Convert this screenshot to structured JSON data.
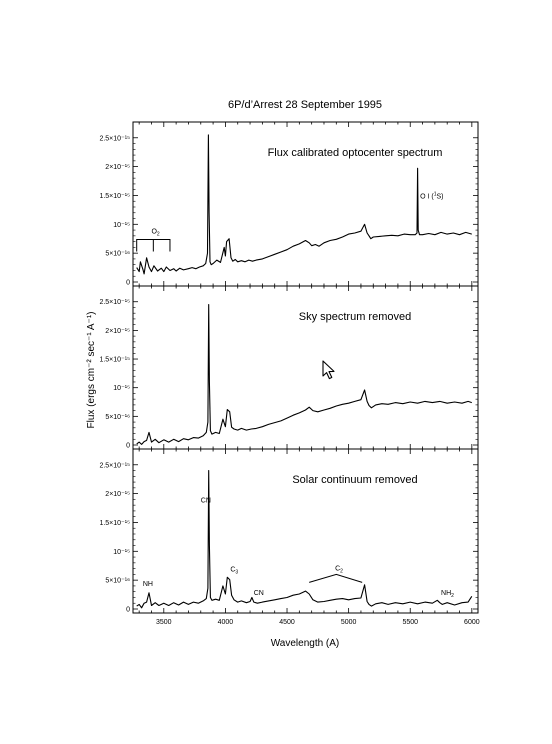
{
  "figure": {
    "title": "6P/d’Arrest 28 September 1995",
    "xlabel": "Wavelength (A)",
    "ylabel": "Flux (ergs cm⁻² sec⁻¹ A⁻¹)"
  },
  "chart_data": [
    {
      "type": "line",
      "title": "Flux calibrated optocenter spectrum",
      "xlim": [
        3250,
        6050
      ],
      "ylim": [
        0,
        2.6e-15
      ],
      "xticks": [
        3500,
        4000,
        4500,
        5000,
        5500,
        6000
      ],
      "xtick_labels": [
        "3500",
        "4000",
        "4500",
        "5000",
        "5500",
        "6000"
      ],
      "yticks": [
        0,
        5e-16,
        1e-15,
        1.5e-15,
        2e-15,
        2.5e-15
      ],
      "ytick_labels": [
        "0",
        "5×10⁻¹⁶",
        "10⁻¹⁵",
        "1.5×10⁻¹⁵",
        "2×10⁻¹⁵",
        "2.5×10⁻¹⁵"
      ],
      "series": [
        {
          "x": [
            3280,
            3300,
            3310,
            3330,
            3340,
            3360,
            3380,
            3400,
            3420,
            3450,
            3480,
            3500,
            3520,
            3550,
            3580,
            3600,
            3630,
            3660,
            3700,
            3730,
            3760,
            3790,
            3820,
            3840,
            3855,
            3862,
            3868,
            3875,
            3885,
            3900,
            3930,
            3960,
            3990,
            4000,
            4010,
            4030,
            4045,
            4060,
            4080,
            4100,
            4130,
            4160,
            4190,
            4220,
            4250,
            4300,
            4350,
            4400,
            4450,
            4500,
            4550,
            4600,
            4650,
            4680,
            4700,
            4730,
            4760,
            4800,
            4850,
            4900,
            4950,
            5000,
            5050,
            5100,
            5130,
            5150,
            5165,
            5180,
            5200,
            5250,
            5300,
            5350,
            5400,
            5450,
            5500,
            5540,
            5555,
            5560,
            5565,
            5575,
            5600,
            5650,
            5700,
            5750,
            5800,
            5850,
            5900,
            5950,
            6000
          ],
          "y": [
            2.5e-16,
            1.8e-16,
            3.5e-16,
            2.2e-16,
            1.4e-16,
            4.2e-16,
            2.6e-16,
            1.8e-16,
            2.8e-16,
            1.9e-16,
            2.4e-16,
            1.8e-16,
            2.6e-16,
            2e-16,
            2.3e-16,
            1.9e-16,
            2.4e-16,
            2.1e-16,
            2.3e-16,
            2.5e-16,
            2.3e-16,
            2.6e-16,
            2.8e-16,
            3.2e-16,
            5e-16,
            2.55e-15,
            1.2e-15,
            3.5e-16,
            3e-16,
            3.2e-16,
            3.8e-16,
            3.4e-16,
            6e-16,
            4.5e-16,
            7e-16,
            7.5e-16,
            4.2e-16,
            3.6e-16,
            3.9e-16,
            3.5e-16,
            3.7e-16,
            3.5e-16,
            3.8e-16,
            3.6e-16,
            3.8e-16,
            4e-16,
            4.4e-16,
            4.8e-16,
            5.2e-16,
            5.6e-16,
            6.2e-16,
            6.6e-16,
            7.2e-16,
            6.8e-16,
            6.3e-16,
            6.5e-16,
            6.2e-16,
            6.8e-16,
            7.2e-16,
            7.4e-16,
            7.8e-16,
            8.3e-16,
            8.5e-16,
            8.8e-16,
            1e-15,
            8.5e-16,
            8e-16,
            7.5e-16,
            7.8e-16,
            7.9e-16,
            8e-16,
            8.1e-16,
            8e-16,
            8.3e-16,
            8.2e-16,
            8.2e-16,
            8.5e-16,
            1.97e-15,
            9e-16,
            8.2e-16,
            8.2e-16,
            8.4e-16,
            8.2e-16,
            8.6e-16,
            8.3e-16,
            8.5e-16,
            8.2e-16,
            8.6e-16,
            8.3e-16
          ]
        }
      ],
      "annotations": [
        {
          "text": "O",
          "subscript": "2",
          "x": 3400,
          "y": 8.4e-16,
          "bracket": [
            3280,
            3550
          ]
        },
        {
          "text": "O I (",
          "suffix": "S)",
          "superscript": "1",
          "x": 5580,
          "y": 1.45e-15
        }
      ]
    },
    {
      "type": "line",
      "title": "Sky spectrum removed",
      "xlim": [
        3250,
        6050
      ],
      "ylim": [
        0,
        2.6e-15
      ],
      "xticks": [
        3500,
        4000,
        4500,
        5000,
        5500,
        6000
      ],
      "yticks": [
        0,
        5e-16,
        1e-15,
        1.5e-15,
        2e-15,
        2.5e-15
      ],
      "ytick_labels": [
        "0",
        "5×10⁻¹⁶",
        "10⁻¹⁵",
        "1.5×10⁻¹⁵",
        "2×10⁻¹⁵",
        "2.5×10⁻¹⁵"
      ],
      "series": [
        {
          "x": [
            3280,
            3300,
            3320,
            3340,
            3360,
            3380,
            3400,
            3430,
            3460,
            3500,
            3540,
            3580,
            3620,
            3660,
            3700,
            3740,
            3780,
            3820,
            3845,
            3858,
            3864,
            3870,
            3878,
            3890,
            3920,
            3950,
            3980,
            4000,
            4015,
            4035,
            4050,
            4070,
            4100,
            4130,
            4170,
            4210,
            4250,
            4300,
            4350,
            4400,
            4450,
            4500,
            4550,
            4600,
            4650,
            4680,
            4710,
            4750,
            4800,
            4850,
            4900,
            4950,
            5000,
            5050,
            5100,
            5130,
            5150,
            5165,
            5185,
            5220,
            5270,
            5320,
            5380,
            5440,
            5500,
            5560,
            5620,
            5680,
            5740,
            5800,
            5860,
            5920,
            5970,
            6000
          ],
          "y": [
            2e-17,
            5e-17,
            1e-17,
            6e-17,
            8e-17,
            2.2e-16,
            5e-17,
            1e-16,
            4e-17,
            9e-17,
            5e-17,
            1e-16,
            6e-17,
            1.1e-16,
            9e-17,
            1.3e-16,
            1.2e-16,
            1.6e-16,
            2.2e-16,
            4e-16,
            2.45e-15,
            1.1e-15,
            2.5e-16,
            1.9e-16,
            2.2e-16,
            2e-16,
            4.5e-16,
            3.2e-16,
            6.2e-16,
            5.8e-16,
            3.1e-16,
            2.8e-16,
            2.6e-16,
            2.9e-16,
            2.6e-16,
            2.8e-16,
            2.9e-16,
            3.2e-16,
            3.6e-16,
            3.9e-16,
            4.2e-16,
            4.7e-16,
            5.2e-16,
            5.6e-16,
            6.1e-16,
            6.6e-16,
            6e-16,
            5.8e-16,
            6.1e-16,
            6.4e-16,
            6.8e-16,
            7.1e-16,
            7.3e-16,
            7.6e-16,
            7.9e-16,
            9.6e-16,
            7.6e-16,
            6.9e-16,
            6.5e-16,
            7e-16,
            7.2e-16,
            7.1e-16,
            7.4e-16,
            7.2e-16,
            7.5e-16,
            7.3e-16,
            7.6e-16,
            7.4e-16,
            7.6e-16,
            7.3e-16,
            7.5e-16,
            7.3e-16,
            7.6e-16,
            7.4e-16
          ]
        }
      ]
    },
    {
      "type": "line",
      "title": "Solar continuum removed",
      "xlim": [
        3250,
        6050
      ],
      "ylim": [
        0,
        2.6e-15
      ],
      "xticks": [
        3500,
        4000,
        4500,
        5000,
        5500,
        6000
      ],
      "xtick_labels": [
        "3500",
        "4000",
        "4500",
        "5000",
        "5500",
        "6000"
      ],
      "yticks": [
        0,
        5e-16,
        1e-15,
        1.5e-15,
        2e-15,
        2.5e-15
      ],
      "ytick_labels": [
        "0",
        "5×10⁻¹⁶",
        "10⁻¹⁵",
        "1.5×10⁻¹⁵",
        "2×10⁻¹⁵",
        "2.5×10⁻¹⁵"
      ],
      "series": [
        {
          "x": [
            3280,
            3300,
            3320,
            3340,
            3360,
            3380,
            3400,
            3430,
            3460,
            3500,
            3540,
            3580,
            3620,
            3660,
            3700,
            3740,
            3780,
            3820,
            3845,
            3858,
            3864,
            3870,
            3878,
            3890,
            3920,
            3950,
            3980,
            4000,
            4015,
            4035,
            4050,
            4070,
            4100,
            4130,
            4170,
            4200,
            4215,
            4230,
            4260,
            4300,
            4350,
            4400,
            4450,
            4500,
            4550,
            4600,
            4650,
            4680,
            4710,
            4750,
            4800,
            4850,
            4900,
            4950,
            5000,
            5050,
            5100,
            5130,
            5150,
            5165,
            5185,
            5220,
            5270,
            5320,
            5380,
            5440,
            5500,
            5560,
            5620,
            5680,
            5720,
            5740,
            5760,
            5800,
            5860,
            5920,
            5970,
            6000
          ],
          "y": [
            5e-17,
            8e-17,
            2e-17,
            1e-16,
            1.2e-16,
            2.8e-16,
            6e-17,
            1.1e-16,
            6e-17,
            1e-16,
            6e-17,
            1.1e-16,
            7e-17,
            1.2e-16,
            8e-17,
            1.2e-16,
            1e-16,
            1.4e-16,
            1.8e-16,
            3.6e-16,
            2.4e-15,
            1.1e-15,
            2e-16,
            1.5e-16,
            1.7e-16,
            1.5e-16,
            4e-16,
            2.6e-16,
            5.5e-16,
            5.1e-16,
            2.4e-16,
            1.6e-16,
            1.2e-16,
            1.4e-16,
            1.1e-16,
            1.3e-16,
            2e-16,
            1.2e-16,
            1e-16,
            1.2e-16,
            1.4e-16,
            1.6e-16,
            1.8e-16,
            2e-16,
            2.4e-16,
            2.6e-16,
            3.1e-16,
            2.6e-16,
            1.6e-16,
            1.2e-16,
            1.3e-16,
            1.5e-16,
            1.7e-16,
            1.8e-16,
            1.6e-16,
            1.8e-16,
            1.9e-16,
            4.2e-16,
            1.3e-16,
            8e-17,
            5e-17,
            9e-17,
            1.1e-16,
            8e-17,
            1.1e-16,
            9e-17,
            1.2e-16,
            9e-17,
            1.2e-16,
            1e-16,
            1.5e-16,
            1.1e-16,
            8e-17,
            1.1e-16,
            7e-17,
            1.1e-16,
            1.2e-16,
            2.2e-16
          ]
        }
      ],
      "annotations": [
        {
          "text": "NH",
          "x": 3330,
          "y": 4e-16
        },
        {
          "text": "CN",
          "x": 3800,
          "y": 1.85e-15
        },
        {
          "text": "C",
          "subscript": "3",
          "x": 4040,
          "y": 6.5e-16
        },
        {
          "text": "CN",
          "x": 4230,
          "y": 2.4e-16
        },
        {
          "text": "C",
          "subscript": "2",
          "x": 4890,
          "y": 6.7e-16,
          "caret": [
            4680,
            4900,
            5110
          ]
        },
        {
          "text": "NH",
          "subscript": "2",
          "x": 5750,
          "y": 2.4e-16
        }
      ]
    }
  ]
}
